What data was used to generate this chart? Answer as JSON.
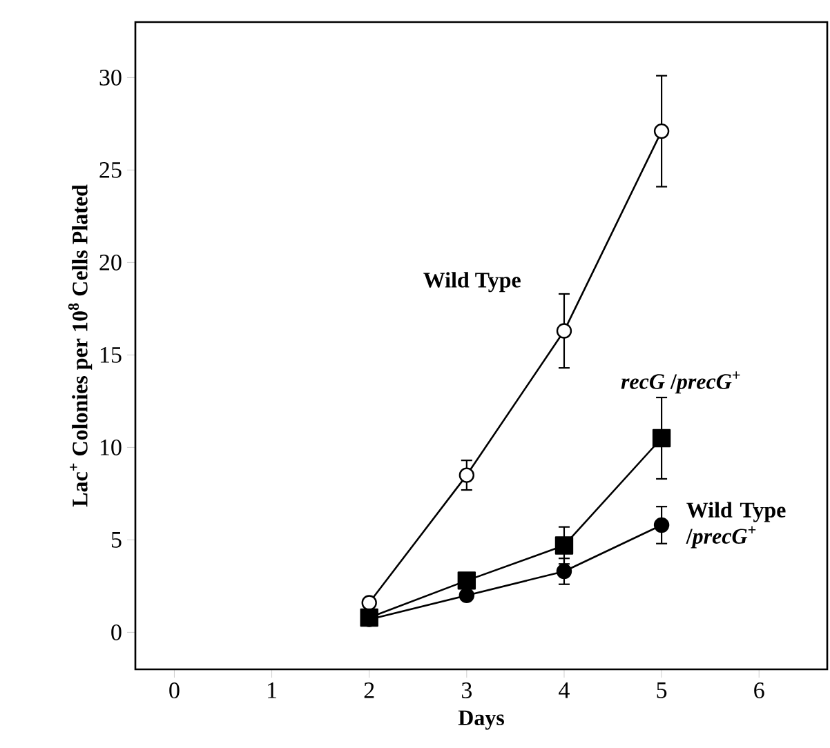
{
  "chart_data": {
    "type": "line",
    "xlabel": "Days",
    "ylabel": "Lac$^{+}$ Colonies per 10$^{8}$ Cells Plated",
    "x": [
      2,
      3,
      4,
      5
    ],
    "series": [
      {
        "name": "Wild Type",
        "color": "#000000",
        "marker": "circle",
        "values": [
          1.6,
          8.5,
          16.3,
          27.1
        ],
        "errors": [
          null,
          0.8,
          2.0,
          3.0
        ]
      },
      {
        "name": "*recG* /*precG*$^{+}$",
        "color": "#000000",
        "marker": "square",
        "values": [
          0.8,
          2.8,
          4.7,
          10.5
        ],
        "errors": [
          null,
          null,
          1.0,
          2.2
        ]
      },
      {
        "name": "Wild Type /*precG*$^{+}$",
        "color": "#000000",
        "marker": "circle",
        "values": [
          0.7,
          2.0,
          3.3,
          5.8
        ],
        "errors": [
          null,
          null,
          0.7,
          1.0
        ]
      }
    ],
    "xlim": [
      -0.4,
      6.7
    ],
    "ylim": [
      -2,
      33
    ],
    "xticks": [
      0,
      1,
      2,
      3,
      4,
      5,
      6
    ],
    "yticks": [
      0,
      5,
      10,
      15,
      20,
      25,
      30
    ],
    "grid": false,
    "line_style": "solid"
  }
}
